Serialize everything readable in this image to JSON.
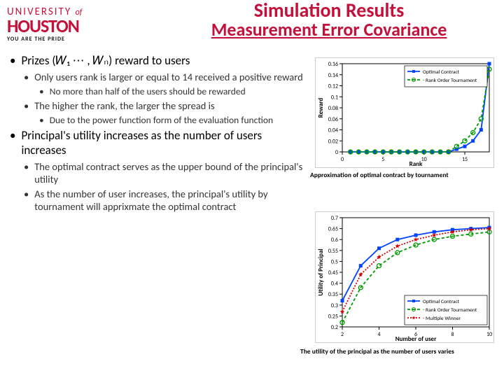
{
  "logo": {
    "top_pre": "UNIVERSITY",
    "top_of": "of",
    "main": "HOUSTON",
    "tag": "YOU ARE THE PRIDE"
  },
  "header": {
    "title": "Simulation Results",
    "subtitle": "Measurement Error Covariance"
  },
  "bullets": [
    {
      "lvl": 0,
      "text": "Prizes (𝑊₁ ⋯ , 𝑊ₙ) reward to users"
    },
    {
      "lvl": 1,
      "text": "Only users rank is larger or equal to 14 received a positive reward"
    },
    {
      "lvl": 2,
      "text": "No more than half of the users should be rewarded"
    },
    {
      "lvl": 1,
      "text": "The higher the rank, the larger the spread is"
    },
    {
      "lvl": 2,
      "text": "Due to the power function form of the evaluation function"
    },
    {
      "lvl": 0,
      "text": "Principal's utility increases as the number of users increases"
    },
    {
      "lvl": 1,
      "text": "The optimal contract serves as the upper bound of the principal's utility"
    },
    {
      "lvl": 1,
      "text": "As the number of user increases, the principal's utility by tournament will apprixmate the optimal contract"
    }
  ],
  "chart1": {
    "type": "line",
    "xlabel": "Rank",
    "ylabel": "Reward",
    "xlim": [
      0,
      18
    ],
    "ylim": [
      0,
      0.16
    ],
    "xticks": [
      0,
      5,
      10,
      15
    ],
    "yticks": [
      0,
      0.02,
      0.04,
      0.06,
      0.08,
      0.1,
      0.12,
      0.14,
      0.16
    ],
    "series": [
      {
        "name": "Optimal Contract",
        "color": "#0042ff",
        "marker": "square",
        "dash": "none",
        "x": [
          1,
          2,
          3,
          4,
          5,
          6,
          7,
          8,
          9,
          10,
          11,
          12,
          13,
          14,
          15,
          16,
          17,
          18
        ],
        "y": [
          0,
          0,
          0,
          0,
          0,
          0,
          0,
          0,
          0,
          0,
          0,
          0,
          0,
          0.005,
          0.01,
          0.02,
          0.04,
          0.16
        ]
      },
      {
        "name": "Rank Order Tournament",
        "color": "#009a00",
        "marker": "circle",
        "dash": "4,3",
        "x": [
          1,
          2,
          3,
          4,
          5,
          6,
          7,
          8,
          9,
          10,
          11,
          12,
          13,
          14,
          15,
          16,
          17,
          18
        ],
        "y": [
          0,
          0,
          0,
          0,
          0,
          0,
          0,
          0,
          0,
          0,
          0,
          0,
          0,
          0.01,
          0.02,
          0.035,
          0.06,
          0.15
        ]
      }
    ],
    "legend_pos": "top-right",
    "caption": "Approximation of optimal contract by tournament"
  },
  "chart2": {
    "type": "line",
    "xlabel": "Number of user",
    "ylabel": "Utility of Principal",
    "xlim": [
      2,
      10
    ],
    "ylim": [
      0.2,
      0.7
    ],
    "xticks": [
      2,
      4,
      6,
      8,
      10
    ],
    "yticks": [
      0.2,
      0.25,
      0.3,
      0.35,
      0.4,
      0.45,
      0.5,
      0.55,
      0.6,
      0.65,
      0.7
    ],
    "series": [
      {
        "name": "Optimal Contract",
        "color": "#0042ff",
        "marker": "square",
        "dash": "none",
        "x": [
          2,
          3,
          4,
          5,
          6,
          7,
          8,
          9,
          10
        ],
        "y": [
          0.32,
          0.48,
          0.56,
          0.6,
          0.62,
          0.635,
          0.645,
          0.65,
          0.655
        ]
      },
      {
        "name": "Rank Order Tournament",
        "color": "#009a00",
        "marker": "circle",
        "dash": "4,3",
        "x": [
          2,
          3,
          4,
          5,
          6,
          7,
          8,
          9,
          10
        ],
        "y": [
          0.22,
          0.38,
          0.48,
          0.54,
          0.575,
          0.6,
          0.615,
          0.625,
          0.635
        ]
      },
      {
        "name": "Multiple Winner",
        "color": "#d40000",
        "marker": "star",
        "dash": "2,2",
        "x": [
          2,
          3,
          4,
          5,
          6,
          7,
          8,
          9,
          10
        ],
        "y": [
          0.27,
          0.44,
          0.52,
          0.57,
          0.6,
          0.62,
          0.635,
          0.645,
          0.65
        ]
      }
    ],
    "legend_pos": "bottom-right",
    "caption": "The utility of the principal as the number of users varies"
  },
  "colors": {
    "brand": "#c4113a",
    "grid": "#cccccc",
    "axis": "#000000"
  }
}
